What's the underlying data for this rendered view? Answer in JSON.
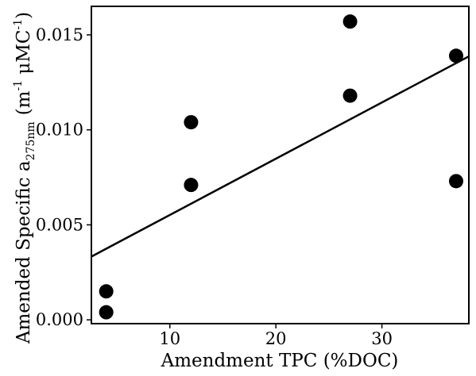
{
  "chart_data": {
    "type": "scatter",
    "xlabel": "Amendment TPC (%DOC)",
    "ylabel": {
      "prefix": "Amended Specific a",
      "subscript": "275nm",
      "units_open": "(m",
      "sup1": "-1",
      "units_mid": " μMC",
      "sup2": "-1",
      "units_close": ")"
    },
    "xlim": [
      2.6,
      38.2
    ],
    "ylim": [
      -0.0002,
      0.0165
    ],
    "xticks": [
      10,
      20,
      30
    ],
    "xtick_labels": [
      "10",
      "20",
      "30"
    ],
    "yticks": [
      0.0,
      0.005,
      0.01,
      0.015
    ],
    "ytick_labels": [
      "0.000",
      "0.005",
      "0.010",
      "0.015"
    ],
    "grid": false,
    "points": [
      {
        "x": 4,
        "y": 0.0015
      },
      {
        "x": 4,
        "y": 0.0004
      },
      {
        "x": 12,
        "y": 0.0104
      },
      {
        "x": 12,
        "y": 0.0071
      },
      {
        "x": 27,
        "y": 0.0157
      },
      {
        "x": 27,
        "y": 0.0118
      },
      {
        "x": 37,
        "y": 0.0139
      },
      {
        "x": 37,
        "y": 0.0073
      }
    ],
    "fit_line": {
      "slope": 0.000296,
      "intercept": 0.00256
    },
    "colors": {
      "points": "#000000",
      "line": "#000000",
      "frame": "#000000"
    }
  }
}
